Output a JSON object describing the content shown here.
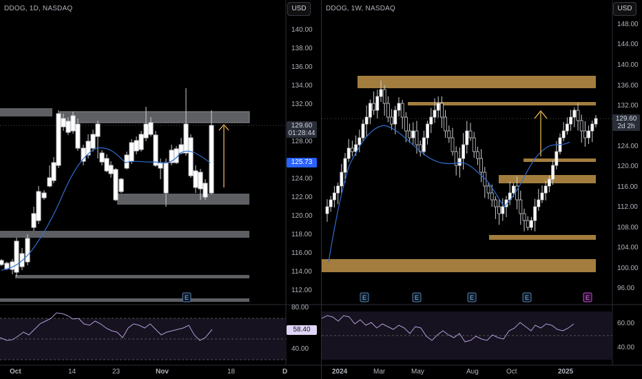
{
  "left": {
    "ticker": "DDOG, 1D, NASDAQ",
    "currency": "USD",
    "y_labels": [
      "140.00",
      "138.00",
      "136.00",
      "134.00",
      "132.00",
      "130.00",
      "128.00",
      "126.00",
      "124.00",
      "122.00",
      "120.00",
      "118.00",
      "116.00",
      "114.00",
      "112.00"
    ],
    "price_tag": "129.60",
    "countdown": "01:28:44",
    "ma_tag": "125.73",
    "rsi_labels": [
      "80.00",
      "40.00"
    ],
    "rsi_tag": "58.40",
    "x_labels": [
      "Oct",
      "14",
      "23",
      "Nov",
      "18",
      "D"
    ],
    "earnings_icon": "E"
  },
  "right": {
    "ticker": "DDOG, 1W, NASDAQ",
    "currency": "USD",
    "y_labels": [
      "148.00",
      "144.00",
      "140.00",
      "136.00",
      "132.00",
      "128.00",
      "124.00",
      "120.00",
      "116.00",
      "112.00",
      "108.00",
      "104.00",
      "100.00",
      "96.00"
    ],
    "price_tag": "129.60",
    "countdown": "2d 2h",
    "rsi_labels": [
      "60.00",
      "40.00"
    ],
    "x_labels": [
      "2024",
      "Mar",
      "May",
      "Aug",
      "Oct",
      "2025"
    ],
    "earnings_icon": "E"
  },
  "colors": {
    "bull": "#ffffff",
    "bear": "#000000",
    "zone_gray": "#5d5f63",
    "zone_gold": "#a27d3e",
    "ma": "#2f6ed2",
    "rsi": "#b39ddb",
    "arrow": "#f6c65b",
    "ma_tag": "#2962ff"
  }
}
